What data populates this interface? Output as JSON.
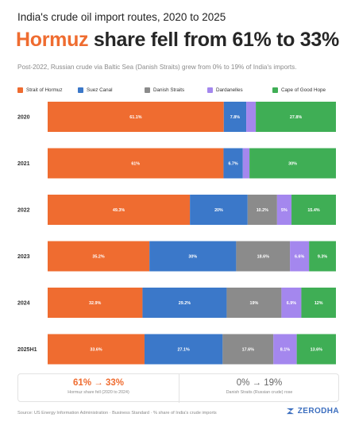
{
  "header": {
    "kicker": "India's crude oil import routes, 2020 to 2025",
    "headline_highlight": "Hormuz",
    "headline_rest": " share fell from 61% to 33%",
    "subtitle": "Post-2022, Russian crude via Baltic Sea (Danish Straits) grew from 0% to 19% of India's imports."
  },
  "colors": {
    "accent": "#ef6c30",
    "brand": "#3d6fbf"
  },
  "chart_data": {
    "type": "bar",
    "orientation": "horizontal",
    "stacked": true,
    "normalized": true,
    "categories": [
      "2020",
      "2021",
      "2022",
      "2023",
      "2024",
      "2025H1"
    ],
    "series": [
      {
        "name": "Strait of Hormuz",
        "color": "#ef6c30",
        "values": [
          61.1,
          61,
          49.3,
          35.2,
          32.9,
          33.6
        ],
        "labels": [
          "61.1%",
          "61%",
          "49.3%",
          "35.2%",
          "32.9%",
          "33.6%"
        ]
      },
      {
        "name": "Suez Canal",
        "color": "#3b78c9",
        "values": [
          7.8,
          6.7,
          20,
          30,
          29.2,
          27.1
        ],
        "labels": [
          "7.8%",
          "6.7%",
          "20%",
          "30%",
          "29.2%",
          "27.1%"
        ]
      },
      {
        "name": "Danish Straits",
        "color": "#8b8b8b",
        "values": [
          0,
          0,
          10.2,
          18.6,
          19,
          17.6
        ],
        "labels": [
          "",
          "",
          "10.2%",
          "18.6%",
          "19%",
          "17.6%"
        ]
      },
      {
        "name": "Dardanelles",
        "color": "#a487ee",
        "values": [
          3.3,
          2.3,
          5,
          6.6,
          6.9,
          8.1
        ],
        "labels": [
          "",
          "",
          "5%",
          "6.6%",
          "6.9%",
          "8.1%"
        ]
      },
      {
        "name": "Cape of Good Hope",
        "color": "#3fae55",
        "values": [
          27.8,
          30,
          15.4,
          9.3,
          12,
          13.6
        ],
        "labels": [
          "27.8%",
          "30%",
          "15.4%",
          "9.3%",
          "12%",
          "13.6%"
        ]
      }
    ]
  },
  "stats": [
    {
      "value": "61% → 33%",
      "caption": "Hormuz share fell (2020 to 2024)"
    },
    {
      "value": "0% → 19%",
      "caption": "Danish Straits (Russian crude) rose"
    }
  ],
  "footer": {
    "source": "Source: US Energy Information Administration · Business Standard · % share of India's crude imports",
    "brand": "ZERODHA"
  }
}
